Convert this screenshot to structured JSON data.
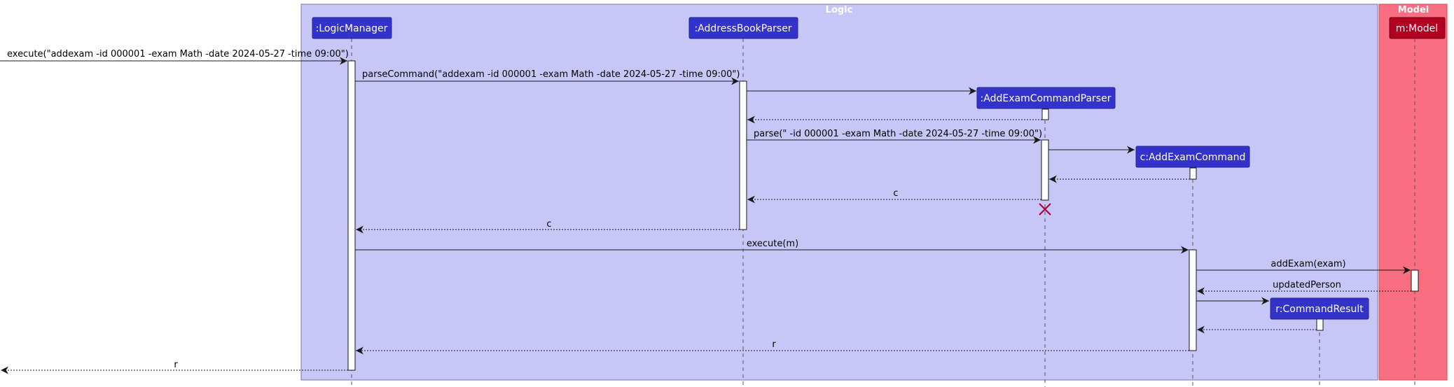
{
  "groups": {
    "logic": {
      "title": "Logic"
    },
    "model": {
      "title": "Model"
    }
  },
  "participants": [
    {
      "id": "logicmanager",
      "label": ":LogicManager"
    },
    {
      "id": "parser",
      "label": ":AddressBookParser"
    },
    {
      "id": "aecp",
      "label": ":AddExamCommandParser"
    },
    {
      "id": "aec",
      "label": "c:AddExamCommand"
    },
    {
      "id": "cr",
      "label": "r:CommandResult"
    },
    {
      "id": "model",
      "label": "m:Model"
    }
  ],
  "messages": [
    {
      "id": "m1",
      "label": "execute(\"addexam -id 000001 -exam Math -date 2024-05-27 -time 09:00\")"
    },
    {
      "id": "m2",
      "label": "parseCommand(\"addexam -id 000001 -exam Math -date 2024-05-27 -time 09:00\")"
    },
    {
      "id": "m3",
      "label": ""
    },
    {
      "id": "m4",
      "label": ""
    },
    {
      "id": "m5",
      "label": "parse(\" -id 000001 -exam Math -date 2024-05-27 -time 09:00\")"
    },
    {
      "id": "m6",
      "label": ""
    },
    {
      "id": "m7",
      "label": ""
    },
    {
      "id": "m8",
      "label": "c"
    },
    {
      "id": "m9",
      "label": "c"
    },
    {
      "id": "m10",
      "label": "execute(m)"
    },
    {
      "id": "m11",
      "label": "addExam(exam)"
    },
    {
      "id": "m12",
      "label": "updatedPerson"
    },
    {
      "id": "m13",
      "label": ""
    },
    {
      "id": "m14",
      "label": ""
    },
    {
      "id": "m15",
      "label": "r"
    },
    {
      "id": "m16",
      "label": "r"
    }
  ],
  "colors": {
    "logic_bg": "#c7c7f7",
    "logic_border": "#7777aa",
    "model_bg": "#f96e81",
    "participant_logic": "#3333cc",
    "participant_model": "#b10021",
    "destroy_mark": "#a80036"
  }
}
